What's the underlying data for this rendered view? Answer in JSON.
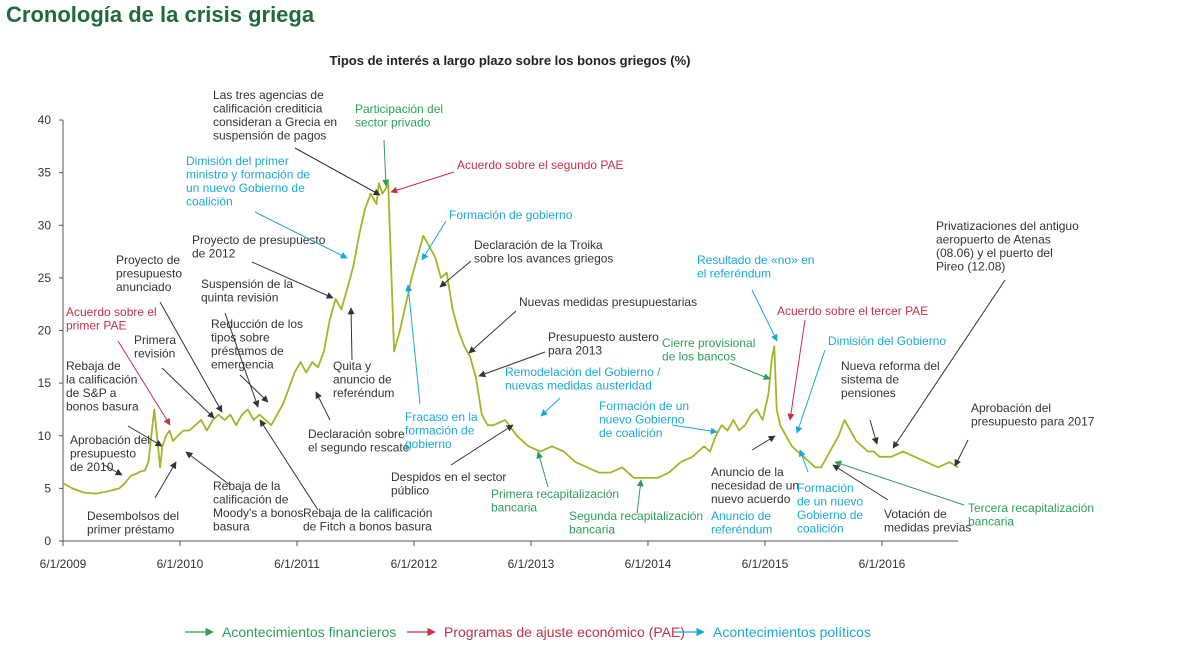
{
  "header": {
    "title": "Cronología de la crisis griega"
  },
  "colors": {
    "financial": "#2e9e5b",
    "programs": "#c4314b",
    "political": "#1aa8d6",
    "line": "#a3b52a",
    "text": "#333333",
    "title_green": "#1f6b3a"
  },
  "chart_data": {
    "type": "line",
    "title": "Tipos de interés a largo plazo sobre los bonos griegos (%)",
    "xlabel": "",
    "ylabel": "",
    "ylim": [
      0,
      40
    ],
    "yticks": [
      0,
      5,
      10,
      15,
      20,
      25,
      30,
      35,
      40
    ],
    "xlim": [
      2009.42,
      2017.07
    ],
    "xticks": [
      {
        "label": "6/1/2009",
        "x": 2009.42
      },
      {
        "label": "6/1/2010",
        "x": 2010.42
      },
      {
        "label": "6/1/2011",
        "x": 2011.42
      },
      {
        "label": "6/1/2012",
        "x": 2012.42
      },
      {
        "label": "6/1/2013",
        "x": 2013.42
      },
      {
        "label": "6/1/2014",
        "x": 2014.42
      },
      {
        "label": "6/1/2015",
        "x": 2015.42
      },
      {
        "label": "6/1/2016",
        "x": 2016.42
      }
    ],
    "grid": false,
    "series": [
      {
        "name": "",
        "x": [
          2009.42,
          2009.5,
          2009.6,
          2009.7,
          2009.8,
          2009.9,
          2009.95,
          2010.0,
          2010.05,
          2010.08,
          2010.12,
          2010.15,
          2010.2,
          2010.25,
          2010.27,
          2010.3,
          2010.33,
          2010.36,
          2010.4,
          2010.45,
          2010.5,
          2010.55,
          2010.6,
          2010.65,
          2010.7,
          2010.75,
          2010.8,
          2010.85,
          2010.9,
          2010.95,
          2011.0,
          2011.05,
          2011.1,
          2011.15,
          2011.2,
          2011.25,
          2011.3,
          2011.35,
          2011.4,
          2011.45,
          2011.5,
          2011.55,
          2011.6,
          2011.65,
          2011.7,
          2011.75,
          2011.8,
          2011.85,
          2011.9,
          2011.95,
          2012.0,
          2012.05,
          2012.1,
          2012.12,
          2012.15,
          2012.18,
          2012.2,
          2012.25,
          2012.3,
          2012.35,
          2012.4,
          2012.45,
          2012.5,
          2012.55,
          2012.6,
          2012.65,
          2012.7,
          2012.75,
          2012.8,
          2012.85,
          2012.9,
          2012.95,
          2013.0,
          2013.05,
          2013.1,
          2013.2,
          2013.3,
          2013.4,
          2013.5,
          2013.6,
          2013.7,
          2013.8,
          2013.9,
          2014.0,
          2014.1,
          2014.2,
          2014.3,
          2014.4,
          2014.5,
          2014.6,
          2014.7,
          2014.8,
          2014.85,
          2014.9,
          2014.95,
          2015.0,
          2015.05,
          2015.1,
          2015.15,
          2015.2,
          2015.25,
          2015.3,
          2015.35,
          2015.4,
          2015.45,
          2015.48,
          2015.5,
          2015.52,
          2015.55,
          2015.6,
          2015.65,
          2015.7,
          2015.75,
          2015.8,
          2015.85,
          2015.9,
          2015.95,
          2016.0,
          2016.05,
          2016.1,
          2016.15,
          2016.2,
          2016.25,
          2016.3,
          2016.35,
          2016.4,
          2016.45,
          2016.5,
          2016.6,
          2016.7,
          2016.8,
          2016.9,
          2017.0,
          2017.07
        ],
        "values": [
          5.5,
          5.0,
          4.6,
          4.5,
          4.7,
          5.0,
          5.5,
          6.2,
          6.4,
          6.6,
          6.7,
          7.5,
          12.5,
          7.0,
          9.0,
          10.0,
          10.5,
          9.5,
          10.0,
          10.5,
          10.5,
          11.0,
          11.5,
          10.5,
          11.5,
          12.0,
          11.5,
          12.0,
          11.0,
          12.0,
          12.5,
          11.5,
          12.0,
          11.5,
          11.0,
          12.0,
          13.0,
          14.5,
          16.0,
          17.0,
          16.0,
          17.0,
          16.5,
          18.0,
          21.0,
          23.0,
          22.0,
          24.0,
          26.0,
          29.0,
          31.5,
          33.0,
          32.0,
          34.0,
          33.0,
          33.5,
          34.0,
          18.0,
          20.0,
          22.5,
          25.0,
          27.0,
          29.0,
          28.0,
          27.0,
          25.0,
          25.5,
          22.0,
          20.0,
          18.5,
          17.5,
          15.5,
          12.0,
          11.0,
          11.0,
          11.5,
          10.0,
          9.0,
          8.5,
          9.0,
          8.5,
          7.5,
          7.0,
          6.5,
          6.5,
          7.0,
          6.0,
          6.0,
          6.0,
          6.5,
          7.5,
          8.0,
          8.5,
          9.0,
          8.5,
          10.0,
          11.0,
          10.5,
          11.5,
          10.5,
          11.0,
          12.0,
          12.5,
          11.5,
          14.0,
          17.5,
          18.5,
          12.5,
          11.0,
          10.0,
          9.0,
          8.5,
          8.0,
          7.5,
          7.0,
          7.0,
          8.0,
          9.0,
          10.0,
          11.5,
          10.5,
          9.5,
          9.0,
          8.5,
          8.5,
          8.0,
          8.0,
          8.0,
          8.5,
          8.0,
          7.5,
          7.0,
          7.5,
          7.0
        ]
      }
    ],
    "legend": {
      "placement": "bottom",
      "entries": [
        {
          "label": "Acontecimientos financieros",
          "color_key": "financial"
        },
        {
          "label": "Programas de ajuste económico (PAE)",
          "color_key": "programs"
        },
        {
          "label": "Acontecimientos políticos",
          "color_key": "political"
        }
      ]
    },
    "annotations": [
      {
        "id": "a1",
        "lines": [
          "Aprobación del",
          "presupuesto",
          "de 2010"
        ],
        "type": "black"
      },
      {
        "id": "a2",
        "lines": [
          "Desembolsos del",
          "primer préstamo"
        ],
        "type": "black"
      },
      {
        "id": "a3",
        "lines": [
          "Rebaja de",
          "la calificación",
          "de S&P a",
          "bonos basura"
        ],
        "type": "black"
      },
      {
        "id": "a4",
        "lines": [
          "Acuerdo sobre el",
          "primer PAE"
        ],
        "type": "programs"
      },
      {
        "id": "a5",
        "lines": [
          "Primera",
          "revisión"
        ],
        "type": "black"
      },
      {
        "id": "a6",
        "lines": [
          "Proyecto de",
          "presupuesto",
          "anunciado"
        ],
        "type": "black"
      },
      {
        "id": "a7",
        "lines": [
          "Rebaja de la",
          "calificación de",
          "Moody's a bonos",
          "basura"
        ],
        "type": "black"
      },
      {
        "id": "a8",
        "lines": [
          "Suspensión de la",
          "quinta revisión"
        ],
        "type": "black"
      },
      {
        "id": "a9",
        "lines": [
          "Reducción de los",
          "tipos sobre",
          "préstamos de",
          "emergencia"
        ],
        "type": "black"
      },
      {
        "id": "a10",
        "lines": [
          "Rebaja de la calificación",
          "de Fitch a bonos basura"
        ],
        "type": "black"
      },
      {
        "id": "a11",
        "lines": [
          "Proyecto de presupuesto",
          "de 2012"
        ],
        "type": "black"
      },
      {
        "id": "a12",
        "lines": [
          "Declaración sobre",
          "el segundo rescate"
        ],
        "type": "black"
      },
      {
        "id": "a13",
        "lines": [
          "Quita y",
          "anuncio de",
          "referéndum"
        ],
        "type": "black"
      },
      {
        "id": "a14",
        "lines": [
          "Dimisión del primer",
          "ministro y formación de",
          "un nuevo Gobierno de",
          "coalición"
        ],
        "type": "political"
      },
      {
        "id": "a15",
        "lines": [
          "Las tres agencias de",
          "calificación crediticia",
          "consideran a Grecia en",
          "suspensión de pagos"
        ],
        "type": "black"
      },
      {
        "id": "a16",
        "lines": [
          "Participación del",
          "sector privado"
        ],
        "type": "financial"
      },
      {
        "id": "a17",
        "lines": [
          "Acuerdo sobre el segundo PAE"
        ],
        "type": "programs"
      },
      {
        "id": "a18",
        "lines": [
          "Formación de gobierno"
        ],
        "type": "political"
      },
      {
        "id": "a19",
        "lines": [
          "Fracaso en la",
          "formación de",
          "gobierno"
        ],
        "type": "political"
      },
      {
        "id": "a20",
        "lines": [
          "Declaración de la Troika",
          "sobre los avances griegos"
        ],
        "type": "black"
      },
      {
        "id": "a21",
        "lines": [
          "Nuevas medidas presupuestarias"
        ],
        "type": "black"
      },
      {
        "id": "a22",
        "lines": [
          "Presupuesto austero",
          "para 2013"
        ],
        "type": "black"
      },
      {
        "id": "a23",
        "lines": [
          "Remodelación del Gobierno /",
          "nuevas medidas austeridad"
        ],
        "type": "political"
      },
      {
        "id": "a24",
        "lines": [
          "Despidos en el sector",
          "público"
        ],
        "type": "black"
      },
      {
        "id": "a25",
        "lines": [
          "Primera recapitalización",
          "bancaria"
        ],
        "type": "financial"
      },
      {
        "id": "a26",
        "lines": [
          "Formación de un",
          "nuevo Gobierno",
          "de coalición"
        ],
        "type": "political"
      },
      {
        "id": "a27",
        "lines": [
          "Segunda recapitalización",
          "bancaria"
        ],
        "type": "financial"
      },
      {
        "id": "a28",
        "lines": [
          "Resultado de «no» en",
          "el referéndum"
        ],
        "type": "political"
      },
      {
        "id": "a29",
        "lines": [
          "Cierre provisional",
          "de los bancos"
        ],
        "type": "financial"
      },
      {
        "id": "a30",
        "lines": [
          "Acuerdo sobre el tercer PAE"
        ],
        "type": "programs"
      },
      {
        "id": "a31",
        "lines": [
          "Anuncio de la",
          "necesidad de un",
          "nuevo acuerdo"
        ],
        "type": "black"
      },
      {
        "id": "a32",
        "lines": [
          "Anuncio de",
          "referéndum"
        ],
        "type": "political"
      },
      {
        "id": "a33",
        "lines": [
          "Dimisión del Gobierno"
        ],
        "type": "political"
      },
      {
        "id": "a34",
        "lines": [
          "Formación",
          "de un nuevo",
          "Gobierno de",
          "coalición"
        ],
        "type": "political"
      },
      {
        "id": "a35",
        "lines": [
          "Nueva reforma del",
          "sistema de",
          "pensiones"
        ],
        "type": "black"
      },
      {
        "id": "a36",
        "lines": [
          "Votación de",
          "medidas previas"
        ],
        "type": "black"
      },
      {
        "id": "a37",
        "lines": [
          "Privatizaciones del antiguo",
          "aeropuerto de Atenas",
          "(08.06) y el puerto del",
          "Pireo (12.08)"
        ],
        "type": "black"
      },
      {
        "id": "a38",
        "lines": [
          "Tercera recapitalización",
          "bancaria"
        ],
        "type": "financial"
      },
      {
        "id": "a39",
        "lines": [
          "Aprobación del",
          "presupuesto para 2017"
        ],
        "type": "black"
      }
    ]
  }
}
